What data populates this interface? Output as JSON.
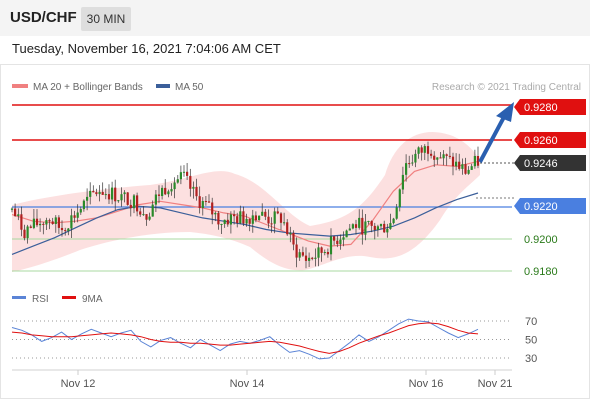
{
  "header": {
    "symbol": "USD/CHF",
    "timeframe": "30 MIN"
  },
  "datetime": "Tuesday, November 16, 2021 7:04:06 AM CET",
  "colors": {
    "bollinger": "#f08080",
    "ma50": "#3b5f9a",
    "resistance": "#e01010",
    "support_line": "#4a7fe0",
    "support_text": "#2a7a1a",
    "last_price": "#333333",
    "candle_up": "#2a8a2a",
    "candle_down": "#b02020",
    "rsi": "#5b84d6",
    "rsi_ma": "#e01010"
  },
  "legend": {
    "bollinger_label": "MA 20 + Bollinger Bands",
    "ma50_label": "MA 50",
    "watermark": "Research © 2021 Trading Central"
  },
  "chart_data": [
    {
      "type": "candlestick",
      "levels": [
        {
          "value": 0.928,
          "label": "0.9280",
          "kind": "resistance"
        },
        {
          "value": 0.926,
          "label": "0.9260",
          "kind": "resistance"
        },
        {
          "value": 0.9246,
          "label": "0.9246",
          "kind": "last"
        },
        {
          "value": 0.922,
          "label": "0.9220",
          "kind": "pivot"
        },
        {
          "value": 0.92,
          "label": "0.9200",
          "kind": "support"
        },
        {
          "value": 0.918,
          "label": "0.9180",
          "kind": "support"
        }
      ],
      "ylim": [
        0.9175,
        0.929
      ],
      "price_path": [
        0.9217,
        0.9204,
        0.9208,
        0.9212,
        0.9205,
        0.9213,
        0.9221,
        0.9229,
        0.9227,
        0.9224,
        0.9222,
        0.9214,
        0.9227,
        0.9234,
        0.9236,
        0.9224,
        0.9218,
        0.921,
        0.9212,
        0.9212,
        0.9215,
        0.9211,
        0.9212,
        0.9193,
        0.9187,
        0.919,
        0.9196,
        0.9203,
        0.9208,
        0.9206,
        0.9206,
        0.9209,
        0.9244,
        0.925,
        0.9255,
        0.9248,
        0.9245,
        0.924,
        0.9246
      ],
      "ma20": [
        0.9214,
        0.921,
        0.9209,
        0.921,
        0.9212,
        0.9216,
        0.922,
        0.9222,
        0.922,
        0.9218,
        0.9215,
        0.9213,
        0.9208,
        0.9203,
        0.9198,
        0.9195,
        0.9196,
        0.921,
        0.9228,
        0.924,
        0.9244,
        0.9243,
        0.9246
      ],
      "ma50": [
        0.919,
        0.9195,
        0.92,
        0.9206,
        0.9212,
        0.9217,
        0.9219,
        0.9218,
        0.9215,
        0.9212,
        0.921,
        0.9208,
        0.9205,
        0.9203,
        0.9202,
        0.9201,
        0.9202,
        0.9204,
        0.9207,
        0.9212,
        0.9218,
        0.9223,
        0.9227
      ],
      "x_labels": [
        "Nov 12",
        "Nov 14",
        "Nov 16",
        "Nov 21"
      ],
      "forecast": {
        "from": 0.9246,
        "to": 0.928
      }
    },
    {
      "type": "line",
      "legend": [
        "RSI",
        "9MA"
      ],
      "ylim": [
        20,
        80
      ],
      "y_ticks": [
        70,
        50,
        30
      ],
      "series": [
        {
          "name": "RSI",
          "values": [
            63,
            60,
            55,
            48,
            52,
            58,
            50,
            56,
            61,
            57,
            53,
            57,
            60,
            48,
            42,
            49,
            52,
            46,
            41,
            50,
            44,
            38,
            45,
            48,
            46,
            49,
            53,
            44,
            36,
            38,
            34,
            29,
            30,
            38,
            46,
            55,
            48,
            53,
            60,
            67,
            72,
            70,
            69,
            63,
            57,
            52,
            56,
            61
          ]
        },
        {
          "name": "9MA",
          "values": [
            58,
            57,
            55,
            54,
            53,
            53,
            53,
            54,
            55,
            56,
            57,
            56,
            55,
            53,
            50,
            48,
            47,
            47,
            46,
            46,
            45,
            44,
            44,
            45,
            46,
            47,
            48,
            47,
            45,
            43,
            40,
            37,
            35,
            37,
            41,
            46,
            50,
            54,
            57,
            61,
            65,
            67,
            68,
            67,
            64,
            60,
            57,
            56
          ]
        }
      ]
    }
  ]
}
